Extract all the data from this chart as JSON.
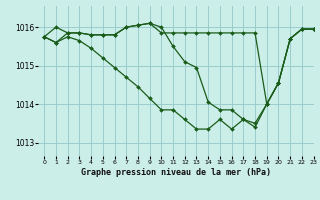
{
  "background_color": "#cceee8",
  "grid_color": "#99cccc",
  "line_color": "#1a5c1a",
  "title": "Graphe pression niveau de la mer (hPa)",
  "xlim": [
    -0.5,
    23
  ],
  "ylim": [
    1012.65,
    1016.55
  ],
  "yticks": [
    1013,
    1014,
    1015,
    1016
  ],
  "xtick_labels": [
    "0",
    "1",
    "2",
    "3",
    "4",
    "5",
    "6",
    "7",
    "8",
    "9",
    "10",
    "11",
    "12",
    "13",
    "14",
    "15",
    "16",
    "17",
    "18",
    "19",
    "20",
    "21",
    "22",
    "23"
  ],
  "series": [
    {
      "x": [
        0,
        1,
        2,
        3,
        4,
        5,
        6,
        7,
        8,
        9,
        10,
        11,
        12,
        13,
        14,
        15,
        16,
        17,
        18,
        19,
        20,
        21,
        22,
        23
      ],
      "y": [
        1015.75,
        1016.0,
        1015.85,
        1015.85,
        1015.8,
        1015.8,
        1015.8,
        1016.0,
        1016.05,
        1016.1,
        1015.85,
        1015.85,
        1015.85,
        1015.85,
        1015.85,
        1015.85,
        1015.85,
        1015.85,
        1015.85,
        1014.0,
        1014.55,
        1015.7,
        1015.95,
        1015.95
      ]
    },
    {
      "x": [
        0,
        1,
        2,
        3,
        4,
        5,
        6,
        7,
        8,
        9,
        10,
        11,
        12,
        13,
        14,
        15,
        16,
        17,
        18,
        19,
        20,
        21,
        22,
        23
      ],
      "y": [
        1015.75,
        1015.6,
        1015.85,
        1015.85,
        1015.8,
        1015.8,
        1015.8,
        1016.0,
        1016.05,
        1016.1,
        1016.0,
        1015.5,
        1015.1,
        1014.95,
        1014.05,
        1013.85,
        1013.85,
        1013.6,
        1013.4,
        1014.0,
        1014.55,
        1015.7,
        1015.95,
        1015.95
      ]
    },
    {
      "x": [
        0,
        1,
        2,
        3,
        4,
        5,
        6,
        7,
        8,
        9,
        10,
        11,
        12,
        13,
        14,
        15,
        16,
        17,
        18,
        19,
        20,
        21,
        22,
        23
      ],
      "y": [
        1015.75,
        1015.6,
        1015.75,
        1015.65,
        1015.45,
        1015.2,
        1014.95,
        1014.7,
        1014.45,
        1014.15,
        1013.85,
        1013.85,
        1013.6,
        1013.35,
        1013.35,
        1013.6,
        1013.35,
        1013.6,
        1013.5,
        1014.0,
        1014.55,
        1015.7,
        1015.95,
        1015.95
      ]
    }
  ]
}
